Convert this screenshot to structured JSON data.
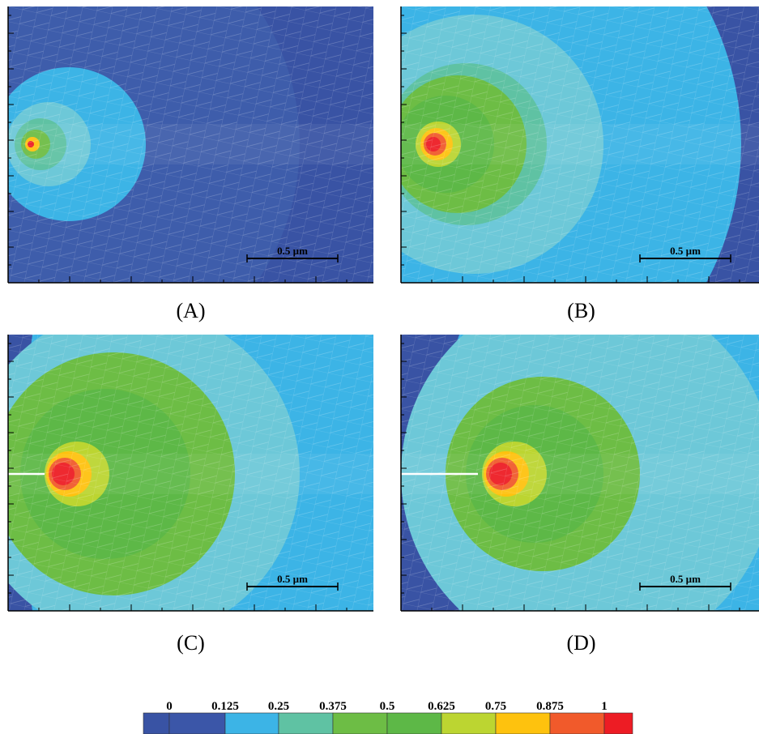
{
  "panels": [
    {
      "label": "(A)",
      "scale_bar": "0.5 µm"
    },
    {
      "label": "(B)",
      "scale_bar": "0.5 µm"
    },
    {
      "label": "(C)",
      "scale_bar": "0.5 µm"
    },
    {
      "label": "(D)",
      "scale_bar": "0.5 µm"
    }
  ],
  "colorbar": {
    "ticks": [
      "0",
      "0.125",
      "0.25",
      "0.375",
      "0.5",
      "0.625",
      "0.75",
      "0.875",
      "1"
    ],
    "colors": [
      "#3953a4",
      "#3b56a8",
      "#3cb4e6",
      "#5fc2a3",
      "#6dbd45",
      "#5db847",
      "#bcd531",
      "#fec20e",
      "#f15a2b",
      "#ed1c24"
    ]
  }
}
